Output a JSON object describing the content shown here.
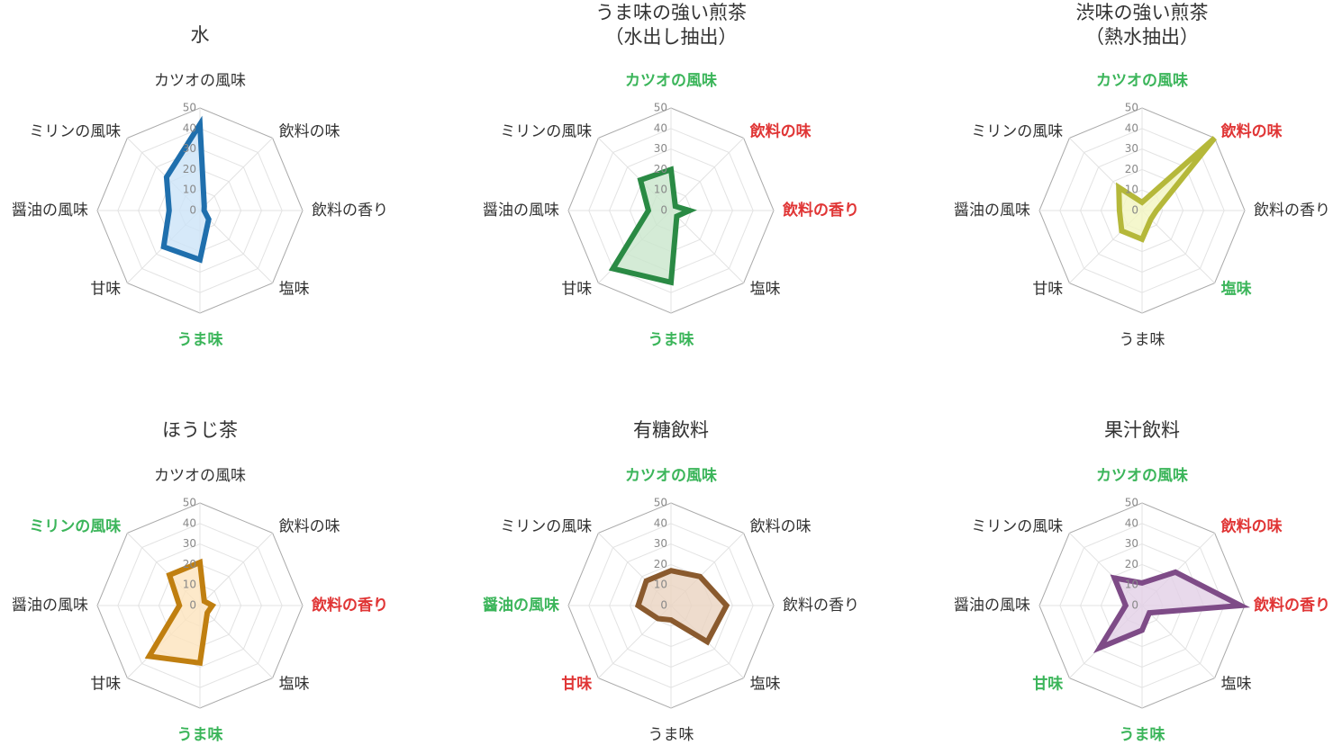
{
  "chart_data": [
    {
      "type": "radar",
      "title": [
        "水"
      ],
      "categories": [
        "カツオの風味",
        "飲料の味",
        "飲料の香り",
        "塩味",
        "うま味",
        "甘味",
        "醤油の風味",
        "ミリンの風味"
      ],
      "values": [
        42,
        3,
        2,
        6,
        24,
        25,
        15,
        23
      ],
      "color": "#1f6fad",
      "fill_color": "#cce4f7",
      "category_colors": [
        "#333333",
        "#333333",
        "#333333",
        "#333333",
        "#3bb55a",
        "#333333",
        "#333333",
        "#333333"
      ],
      "rlim": [
        0,
        50
      ],
      "rticks": [
        0,
        10,
        20,
        30,
        40,
        50
      ]
    },
    {
      "type": "radar",
      "title": [
        "うま味の強い煎茶",
        "（水出し抽出）"
      ],
      "categories": [
        "カツオの風味",
        "飲料の味",
        "飲料の香り",
        "塩味",
        "うま味",
        "甘味",
        "醤油の風味",
        "ミリンの風味"
      ],
      "values": [
        20,
        3,
        9,
        4,
        35,
        40,
        11,
        21
      ],
      "color": "#2a8a44",
      "fill_color": "#c9e6cc",
      "category_colors": [
        "#3bb55a",
        "#e03535",
        "#e03535",
        "#333333",
        "#3bb55a",
        "#333333",
        "#333333",
        "#333333"
      ],
      "rlim": [
        0,
        50
      ],
      "rticks": [
        0,
        10,
        20,
        30,
        40,
        50
      ]
    },
    {
      "type": "radar",
      "title": [
        "渋味の強い煎茶",
        "（熱水抽出）"
      ],
      "categories": [
        "カツオの風味",
        "飲料の味",
        "飲料の香り",
        "塩味",
        "うま味",
        "甘味",
        "醤油の風味",
        "ミリンの風味"
      ],
      "values": [
        4,
        50,
        7,
        6,
        14,
        14,
        11,
        16
      ],
      "color": "#b5b83a",
      "fill_color": "#f3f5c0",
      "category_colors": [
        "#3bb55a",
        "#e03535",
        "#333333",
        "#3bb55a",
        "#333333",
        "#333333",
        "#333333",
        "#333333"
      ],
      "rlim": [
        0,
        50
      ],
      "rticks": [
        0,
        10,
        20,
        30,
        40,
        50
      ]
    },
    {
      "type": "radar",
      "title": [
        "ほうじ茶"
      ],
      "categories": [
        "カツオの風味",
        "飲料の味",
        "飲料の香り",
        "塩味",
        "うま味",
        "甘味",
        "醤油の風味",
        "ミリンの風味"
      ],
      "values": [
        21,
        3,
        6,
        5,
        28,
        35,
        10,
        21
      ],
      "color": "#c07f10",
      "fill_color": "#fde3bd",
      "category_colors": [
        "#333333",
        "#333333",
        "#e03535",
        "#333333",
        "#3bb55a",
        "#333333",
        "#333333",
        "#3bb55a"
      ],
      "rlim": [
        0,
        50
      ],
      "rticks": [
        0,
        10,
        20,
        30,
        40,
        50
      ]
    },
    {
      "type": "radar",
      "title": [
        "有糖飲料"
      ],
      "categories": [
        "カツオの風味",
        "飲料の味",
        "飲料の香り",
        "塩味",
        "うま味",
        "甘味",
        "醤油の風味",
        "ミリンの風味"
      ],
      "values": [
        17,
        20,
        27,
        25,
        7,
        9,
        16,
        17
      ],
      "color": "#8a5a2e",
      "fill_color": "#ead3c0",
      "category_colors": [
        "#3bb55a",
        "#333333",
        "#333333",
        "#333333",
        "#333333",
        "#e03535",
        "#3bb55a",
        "#333333"
      ],
      "rlim": [
        0,
        50
      ],
      "rticks": [
        0,
        10,
        20,
        30,
        40,
        50
      ]
    },
    {
      "type": "radar",
      "title": [
        "果汁飲料"
      ],
      "categories": [
        "カツオの風味",
        "飲料の味",
        "飲料の香り",
        "塩味",
        "うま味",
        "甘味",
        "醤油の風味",
        "ミリンの風味"
      ],
      "values": [
        11,
        23,
        48,
        5,
        12,
        29,
        8,
        19
      ],
      "color": "#7e4b87",
      "fill_color": "#e2cfe6",
      "category_colors": [
        "#3bb55a",
        "#e03535",
        "#e03535",
        "#333333",
        "#3bb55a",
        "#3bb55a",
        "#333333",
        "#333333"
      ],
      "rlim": [
        0,
        50
      ],
      "rticks": [
        0,
        10,
        20,
        30,
        40,
        50
      ]
    }
  ]
}
